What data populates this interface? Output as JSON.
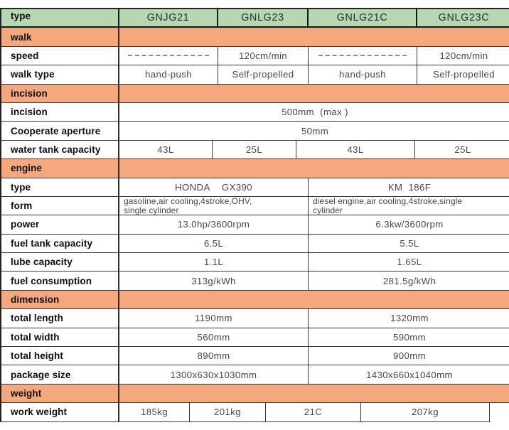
{
  "palette": {
    "header_green": "#b5d8b3",
    "section_orange": "#f5a87e",
    "border_dark": "#3c352f",
    "label_text": "#0f0f0f",
    "value_text": "#474747"
  },
  "table": {
    "rows": [
      {
        "kind": "header",
        "w": "c4",
        "label": "type",
        "cells": [
          {
            "text": "GNJG21"
          },
          {
            "text": "GNLG23"
          },
          {
            "text": "GNLG21C"
          },
          {
            "text": "GNLG23C"
          }
        ]
      },
      {
        "kind": "section",
        "label": "walk"
      },
      {
        "kind": "data",
        "w": "c4",
        "label": "speed",
        "cells": [
          {
            "dash": true
          },
          {
            "text": "120cm/min"
          },
          {
            "dash": true
          },
          {
            "text": "120cm/min"
          }
        ]
      },
      {
        "kind": "data",
        "w": "c4",
        "label": "walk type",
        "cells": [
          {
            "text": "hand-push"
          },
          {
            "text": "Self-propelled"
          },
          {
            "text": "hand-push"
          },
          {
            "text": "Self-propelled"
          }
        ]
      },
      {
        "kind": "section",
        "label": "incision"
      },
      {
        "kind": "data",
        "w": "full",
        "label": "incision",
        "cells": [
          {
            "text": "500mm  (max )"
          }
        ]
      },
      {
        "kind": "data",
        "w": "full",
        "label": "Cooperate aperture",
        "cells": [
          {
            "text": "50mm"
          }
        ]
      },
      {
        "kind": "data",
        "w": "wt",
        "label": "water tank capacity",
        "cells": [
          {
            "text": "43L"
          },
          {
            "text": "25L"
          },
          {
            "text": "43L"
          },
          {
            "text": "25L"
          }
        ]
      },
      {
        "kind": "section",
        "label": "engine"
      },
      {
        "kind": "data",
        "w": "c2",
        "label": "type",
        "cells": [
          {
            "text": "HONDA    GX390"
          },
          {
            "text": "KM  186F"
          }
        ]
      },
      {
        "kind": "data",
        "w": "c2",
        "label": "form",
        "compact": true,
        "cells": [
          {
            "text": "gasoline,air cooling,4stroke,OHV,\nsingle cylinder"
          },
          {
            "text": "diesel engine,air cooling,4stroke,single\ncylinder"
          }
        ]
      },
      {
        "kind": "data",
        "w": "c2",
        "label": "power",
        "cells": [
          {
            "text": "13.0hp/3600rpm"
          },
          {
            "text": "6.3kw/3600rpm"
          }
        ]
      },
      {
        "kind": "data",
        "w": "c2",
        "label": "fuel tank capacity",
        "cells": [
          {
            "text": "6.5L"
          },
          {
            "text": "5.5L"
          }
        ]
      },
      {
        "kind": "data",
        "w": "c2",
        "label": "lube capacity",
        "cells": [
          {
            "text": "1.1L"
          },
          {
            "text": "1.65L"
          }
        ]
      },
      {
        "kind": "data",
        "w": "c2",
        "label": "fuel consumption",
        "cells": [
          {
            "text": "313g/kWh"
          },
          {
            "text": "281.5g/kWh"
          }
        ]
      },
      {
        "kind": "section",
        "label": "dimension"
      },
      {
        "kind": "data",
        "w": "c2",
        "label": "total length",
        "cells": [
          {
            "text": "1190mm"
          },
          {
            "text": "1320mm"
          }
        ]
      },
      {
        "kind": "data",
        "w": "c2",
        "label": "total width",
        "cells": [
          {
            "text": "560mm"
          },
          {
            "text": "590mm"
          }
        ]
      },
      {
        "kind": "data",
        "w": "c2",
        "label": "total height",
        "cells": [
          {
            "text": "890mm"
          },
          {
            "text": "900mm"
          }
        ]
      },
      {
        "kind": "data",
        "w": "c2",
        "label": "package size",
        "cells": [
          {
            "text": "1300x630x1030mm"
          },
          {
            "text": "1430x660x1040mm"
          }
        ]
      },
      {
        "kind": "section",
        "label": "weight"
      },
      {
        "kind": "data",
        "w": "ww",
        "label": "work weight",
        "cells": [
          {
            "text": "185kg"
          },
          {
            "text": "201kg"
          },
          {
            "text": "21C"
          },
          {
            "text": "207kg"
          }
        ]
      }
    ]
  }
}
